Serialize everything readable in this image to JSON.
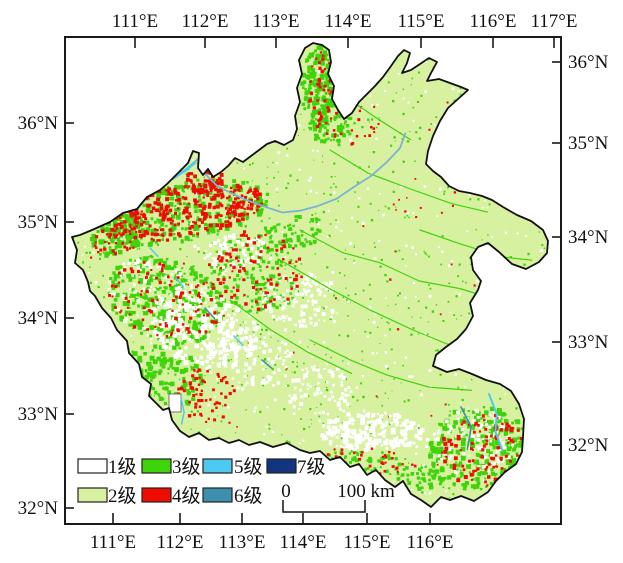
{
  "axes": {
    "top": [
      "111°E",
      "112°E",
      "113°E",
      "114°E",
      "115°E",
      "116°E",
      "117°E"
    ],
    "bottom": [
      "111°E",
      "112°E",
      "113°E",
      "114°E",
      "115°E",
      "116°E"
    ],
    "left": [
      "36°N",
      "35°N",
      "34°N",
      "33°N",
      "32°N"
    ],
    "right": [
      "36°N",
      "35°N",
      "34°N",
      "33°N",
      "32°N"
    ]
  },
  "legend": {
    "items": [
      {
        "label": "1级",
        "color": "#FFFFFF"
      },
      {
        "label": "2级",
        "color": "#D7F1A1"
      },
      {
        "label": "3级",
        "color": "#3FD30A"
      },
      {
        "label": "4级",
        "color": "#EE0D00"
      },
      {
        "label": "5级",
        "color": "#4EC9F0"
      },
      {
        "label": "6级",
        "color": "#3D8FB0"
      },
      {
        "label": "7级",
        "color": "#12357D"
      }
    ]
  },
  "scalebar": {
    "start": "0",
    "end": "100 km"
  },
  "map_colors": {
    "boundary": "#111111",
    "frame": "#1a1a1a",
    "river_pale_blue": "#7FB2D2"
  }
}
